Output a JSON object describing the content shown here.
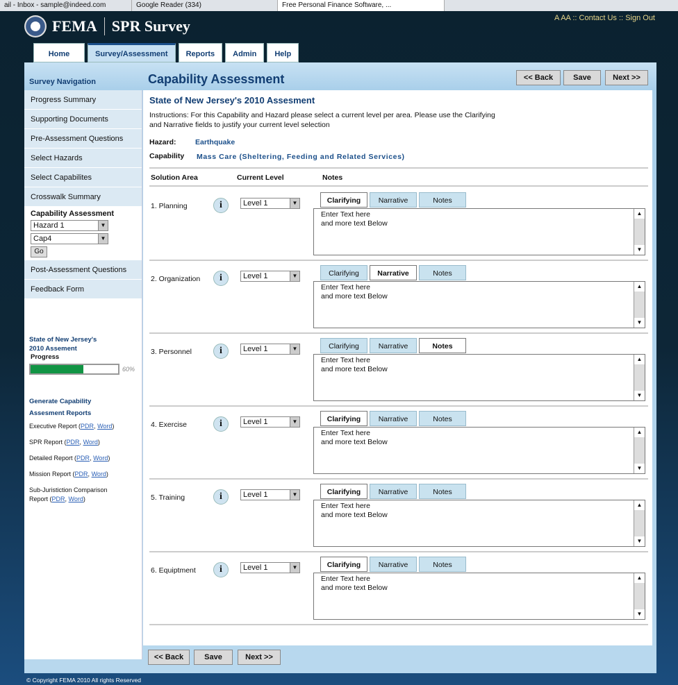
{
  "browser_tabs": [
    {
      "label": "ail - Inbox - sample@indeed.com"
    },
    {
      "label": "Google Reader (334)"
    },
    {
      "label": "Free Personal Finance Software, ..."
    }
  ],
  "header": {
    "logo": "FEMA",
    "app": "SPR Survey",
    "links": [
      "A AA",
      "::",
      "Contact Us",
      "::",
      "Sign Out"
    ]
  },
  "nav": [
    {
      "label": "Home"
    },
    {
      "label": "Survey/Assessment",
      "active": true
    },
    {
      "label": "Reports"
    },
    {
      "label": "Admin"
    },
    {
      "label": "Help"
    }
  ],
  "sidebar": {
    "title": "Survey Navigation",
    "items": [
      "Progress Summary",
      "Supporting Documents",
      "Pre-Assessment Questions",
      "Select Hazards",
      "Select Capabilites",
      "Crosswalk Summary"
    ],
    "cap": {
      "label": "Capability Assessment",
      "hazard": "Hazard 1",
      "cap": "Cap4",
      "go": "Go"
    },
    "items2": [
      "Post-Assessment Questions",
      "Feedback Form"
    ],
    "state": "State of New Jersey's 2010 Assement",
    "progress_label": "Progress",
    "progress_pct": 60,
    "progress_text": "60%",
    "gen": "Generate Capability Assesment Reports",
    "reports": [
      {
        "name": "Executive Report (",
        "pdf": "PDR",
        "word": "Word"
      },
      {
        "name": "SPR Report (",
        "pdf": "PDR",
        "word": "Word"
      },
      {
        "name": "Detailed Report (",
        "pdf": "PDR",
        "word": "Word"
      },
      {
        "name": "Mission Report (",
        "pdf": "PDR",
        "word": "Word"
      },
      {
        "name": "Sub-Juristiction Comparison Report (",
        "pdf": "PDR",
        "word": "Word"
      }
    ]
  },
  "main": {
    "title": "Capability Assessment",
    "back": "<< Back",
    "save": "Save",
    "next": "Next >>",
    "heading": "State of New Jersey's 2010 Assesment",
    "instructions": "Instructions: For this Capability and Hazard please select a current level per area. Please use the Clarifying and Narrative fields to justify your current level selection",
    "hazard_label": "Hazard:",
    "hazard": "Earthquake",
    "cap_label": "Capability",
    "capability": "Mass Care (Sheltering, Feeding and Related Services)",
    "cols": [
      "Solution Area",
      "Current Level",
      "Notes"
    ],
    "tabs": [
      "Clarifying",
      "Narrative",
      "Notes"
    ],
    "rows": [
      {
        "name": "1. Planning",
        "level": "Level 1",
        "active": 0,
        "text": "Enter Text here\nand more text Below"
      },
      {
        "name": "2. Organization",
        "level": "Level 1",
        "active": 1,
        "text": "Enter Text here\nand more text Below"
      },
      {
        "name": "3. Personnel",
        "level": "Level 1",
        "active": 2,
        "text": "Enter Text here\nand more text Below"
      },
      {
        "name": "4. Exercise",
        "level": "Level 1",
        "active": 0,
        "text": "Enter Text here\nand more text Below"
      },
      {
        "name": "5. Training",
        "level": "Level 1",
        "active": 0,
        "text": "Enter Text here\nand more text Below"
      },
      {
        "name": "6. Equiptment",
        "level": "Level 1",
        "active": 0,
        "text": "Enter Text here\nand more text Below"
      }
    ]
  },
  "footer": "© Copyright FEMA 2010 All rights Reserved"
}
